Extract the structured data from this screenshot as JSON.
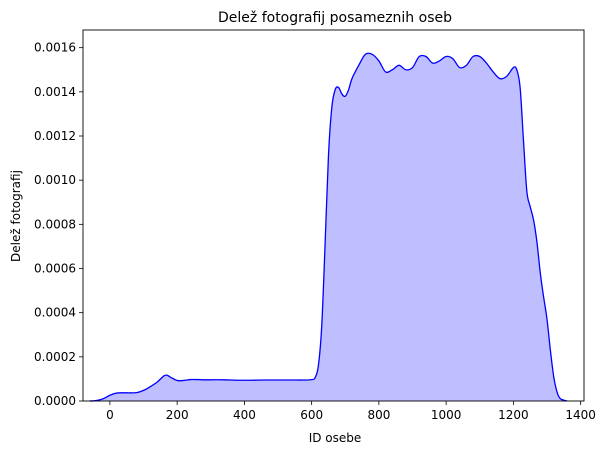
{
  "chart_data": {
    "type": "area",
    "title": "Delež fotografij posameznih oseb",
    "xlabel": "ID osebe",
    "ylabel": "Delež fotografij",
    "xlim": [
      -80,
      1410
    ],
    "ylim": [
      0,
      0.00168
    ],
    "x_ticks": [
      0,
      200,
      400,
      600,
      800,
      1000,
      1200,
      1400
    ],
    "y_ticks": [
      0.0,
      0.0002,
      0.0004,
      0.0006,
      0.0008,
      0.001,
      0.0012,
      0.0014,
      0.0016
    ],
    "x_tick_labels": [
      "0",
      "200",
      "400",
      "600",
      "800",
      "1000",
      "1200",
      "1400"
    ],
    "y_tick_labels": [
      "0.0000",
      "0.0002",
      "0.0004",
      "0.0006",
      "0.0008",
      "0.0010",
      "0.0012",
      "0.0014",
      "0.0016"
    ],
    "grid": false,
    "line_color": "#0000ff",
    "fill_color": "#bfbfff",
    "series": [
      {
        "x": [
          -60,
          -40,
          -20,
          0,
          20,
          40,
          60,
          80,
          100,
          120,
          140,
          160,
          170,
          180,
          200,
          220,
          240,
          260,
          280,
          300,
          340,
          380,
          420,
          460,
          500,
          540,
          580,
          600,
          610,
          620,
          630,
          640,
          650,
          660,
          670,
          680,
          690,
          700,
          710,
          720,
          740,
          760,
          780,
          800,
          820,
          840,
          860,
          880,
          900,
          920,
          940,
          960,
          980,
          1000,
          1020,
          1040,
          1060,
          1080,
          1100,
          1120,
          1140,
          1160,
          1180,
          1200,
          1210,
          1220,
          1230,
          1240,
          1250,
          1260,
          1270,
          1280,
          1290,
          1300,
          1310,
          1320,
          1330,
          1340,
          1360
        ],
        "y": [
          0.0,
          2e-06,
          1e-05,
          2.6e-05,
          3.6e-05,
          3.7e-05,
          3.7e-05,
          3.8e-05,
          4.8e-05,
          6.5e-05,
          8.5e-05,
          0.000113,
          0.000117,
          0.000108,
          9.3e-05,
          9.3e-05,
          9.7e-05,
          9.7e-05,
          9.6e-05,
          9.6e-05,
          9.6e-05,
          9.4e-05,
          9.4e-05,
          9.5e-05,
          9.5e-05,
          9.5e-05,
          9.5e-05,
          9.7e-05,
          0.000105,
          0.00016,
          0.00034,
          0.00071,
          0.00111,
          0.00133,
          0.00141,
          0.00142,
          0.00139,
          0.00138,
          0.00141,
          0.00146,
          0.00152,
          0.00157,
          0.00157,
          0.00154,
          0.00149,
          0.0015,
          0.00152,
          0.0015,
          0.00151,
          0.00156,
          0.00156,
          0.00153,
          0.00154,
          0.00156,
          0.00155,
          0.00151,
          0.00152,
          0.00156,
          0.00156,
          0.00153,
          0.00149,
          0.00146,
          0.00147,
          0.00151,
          0.0015,
          0.00142,
          0.00118,
          0.00095,
          0.00088,
          0.00082,
          0.00072,
          0.00058,
          0.00047,
          0.00037,
          0.00023,
          0.00011,
          4e-05,
          1e-05,
          0.0
        ]
      }
    ]
  }
}
